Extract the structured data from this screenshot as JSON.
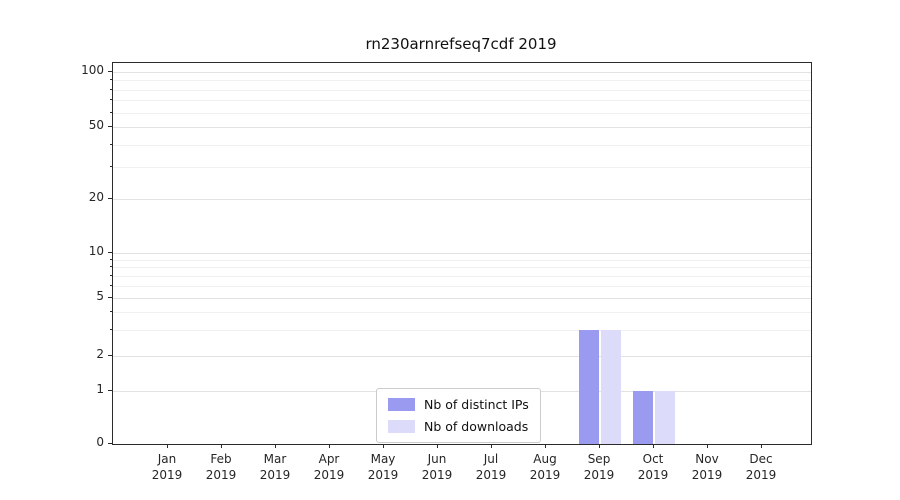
{
  "chart_data": {
    "type": "bar",
    "title": "rn230arnrefseq7cdf 2019",
    "categories": [
      "Jan 2019",
      "Feb 2019",
      "Mar 2019",
      "Apr 2019",
      "May 2019",
      "Jun 2019",
      "Jul 2019",
      "Aug 2019",
      "Sep 2019",
      "Oct 2019",
      "Nov 2019",
      "Dec 2019"
    ],
    "series": [
      {
        "name": "Nb of distinct IPs",
        "color": "#9a9af0",
        "values": [
          0,
          0,
          0,
          0,
          0,
          0,
          0,
          0,
          3,
          1,
          0,
          0
        ]
      },
      {
        "name": "Nb of downloads",
        "color": "#dcdcfa",
        "values": [
          0,
          0,
          0,
          0,
          0,
          0,
          0,
          0,
          3,
          1,
          0,
          0
        ]
      }
    ],
    "yscale": "symlog",
    "yticks": [
      0,
      1,
      2,
      5,
      10,
      20,
      50,
      100
    ],
    "minor_yticks": [
      3,
      4,
      6,
      7,
      8,
      9,
      30,
      40,
      60,
      70,
      80,
      90
    ],
    "ylim": [
      0,
      100
    ],
    "xlabel": "",
    "ylabel": "",
    "grid": true,
    "legend_position": "lower center"
  },
  "colors": {
    "axis": "#2b2b2b",
    "grid_major": "#e2e2e2",
    "grid_minor": "#f0f0f0",
    "background": "#ffffff"
  }
}
